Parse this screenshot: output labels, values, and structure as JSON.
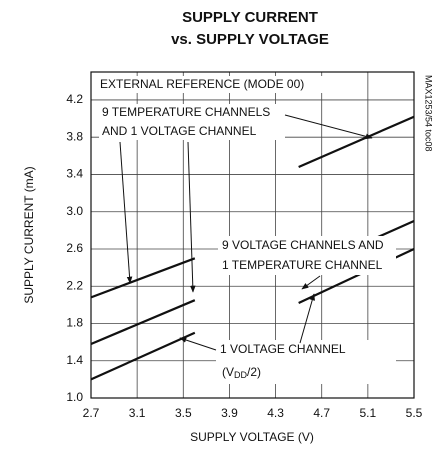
{
  "chart_data": {
    "type": "line",
    "title": [
      "SUPPLY CURRENT",
      "vs. SUPPLY VOLTAGE"
    ],
    "xlabel": "SUPPLY VOLTAGE (V)",
    "ylabel": "SUPPLY CURRENT (mA)",
    "note": "MAX1253/54 toc08",
    "annotations": [
      "EXTERNAL REFERENCE (MODE 00)",
      "9 TEMPERATURE CHANNELS",
      "AND 1 VOLTAGE CHANNEL",
      "9 VOLTAGE CHANNELS AND",
      "1 TEMPERATURE CHANNEL",
      "1 VOLTAGE CHANNEL",
      "(V",
      "DD",
      "/2)"
    ],
    "xlim": [
      2.7,
      5.5
    ],
    "xticks": [
      2.7,
      3.1,
      3.5,
      3.9,
      4.3,
      4.7,
      5.1,
      5.5
    ],
    "ylim": [
      1.0,
      4.5
    ],
    "yticks": [
      {
        "value": 1.0,
        "label": "1.0"
      },
      1.4,
      1.8,
      2.2,
      2.6,
      {
        "value": 3.0,
        "label": "3.0"
      },
      3.4,
      3.8,
      4.2
    ],
    "grid": true,
    "series": [
      {
        "color": "#111111",
        "x": [
          2.7,
          3.6,
          null,
          4.5,
          5.5
        ],
        "values": [
          2.08,
          2.5,
          null,
          3.48,
          4.02
        ]
      },
      {
        "color": "#111111",
        "x": [
          2.7,
          3.6,
          null,
          4.5,
          5.5
        ],
        "values": [
          1.58,
          2.05,
          null,
          2.35,
          2.9
        ]
      },
      {
        "color": "#111111",
        "x": [
          2.7,
          3.6,
          null,
          4.5,
          5.5
        ],
        "values": [
          1.2,
          1.7,
          null,
          2.02,
          2.6
        ]
      }
    ]
  }
}
